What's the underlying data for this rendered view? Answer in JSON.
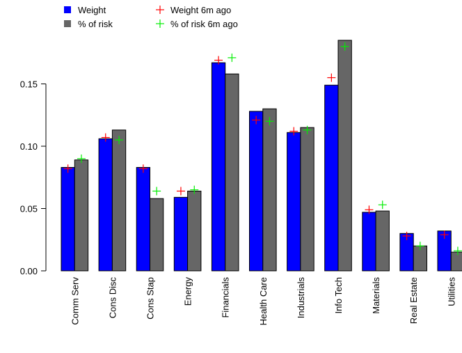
{
  "chart_data": {
    "type": "bar",
    "title": "",
    "xlabel": "",
    "ylabel": "",
    "ylim": [
      0,
      0.19
    ],
    "y_ticks": [
      "0.00",
      "0.05",
      "0.10",
      "0.15"
    ],
    "categories": [
      "Comm Serv",
      "Cons Disc",
      "Cons Stap",
      "Energy",
      "Financials",
      "Health Care",
      "Industrials",
      "Info Tech",
      "Materials",
      "Real Estate",
      "Utilities"
    ],
    "series": [
      {
        "name": "Weight",
        "kind": "bar",
        "color": "#0000FF",
        "values": [
          0.083,
          0.106,
          0.083,
          0.059,
          0.167,
          0.128,
          0.111,
          0.149,
          0.047,
          0.03,
          0.032
        ]
      },
      {
        "name": "% of risk",
        "kind": "bar",
        "color": "#666666",
        "values": [
          0.089,
          0.113,
          0.058,
          0.064,
          0.158,
          0.13,
          0.115,
          0.185,
          0.048,
          0.02,
          0.015
        ]
      },
      {
        "name": "Weight 6m ago",
        "kind": "marker",
        "color": "#FF0000",
        "values": [
          0.082,
          0.107,
          0.082,
          0.064,
          0.169,
          0.121,
          0.112,
          0.155,
          0.049,
          0.028,
          0.029
        ]
      },
      {
        "name": "% of risk 6m ago",
        "kind": "marker",
        "color": "#00EE00",
        "values": [
          0.09,
          0.105,
          0.064,
          0.065,
          0.171,
          0.12,
          0.113,
          0.18,
          0.053,
          0.02,
          0.016
        ]
      }
    ],
    "legend": {
      "position": "top-left"
    },
    "grid": false
  }
}
